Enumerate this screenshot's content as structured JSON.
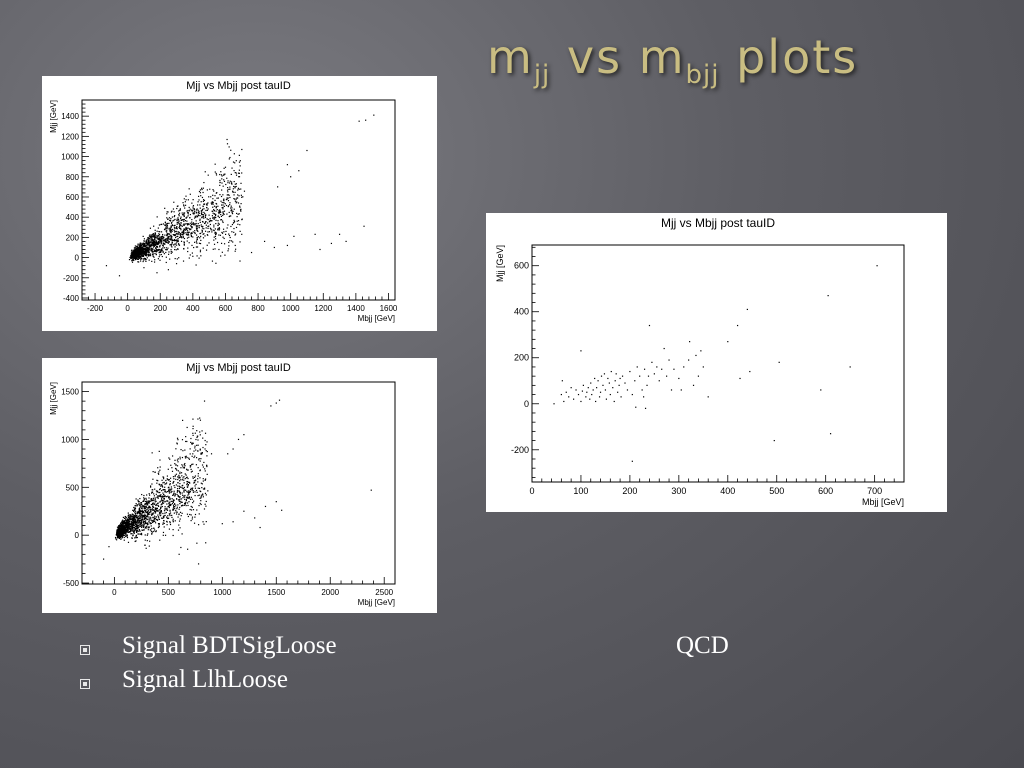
{
  "slide": {
    "title_main": "m",
    "title_sub1": "jj",
    "title_vs": " vs m",
    "title_sub2": "bjj",
    "title_tail": " plots"
  },
  "captions": {
    "bullet1": "Signal BDTSigLoose",
    "bullet2": "Signal LlhLoose",
    "qcd": "QCD"
  },
  "colors": {
    "background": "#5e5e64",
    "title": "#c9bd82",
    "caption": "#ffffff",
    "points": "#000000"
  },
  "chart_data": [
    {
      "id": "bdt",
      "type": "scatter",
      "title": "Mjj vs Mbjj post tauID",
      "xlabel": "Mbjj [GeV]",
      "ylabel": "Mjj [GeV]",
      "xlim": [
        -280,
        1640
      ],
      "ylim": [
        -420,
        1560
      ],
      "xticks": [
        -200,
        0,
        200,
        400,
        600,
        800,
        1000,
        1200,
        1400,
        1600
      ],
      "yticks": [
        -400,
        -200,
        0,
        200,
        400,
        600,
        800,
        1000,
        1200,
        1400
      ],
      "grid": false,
      "cluster": {
        "n": 1800,
        "x_range": [
          40,
          700
        ],
        "slope": 0.95,
        "spread": 0.35,
        "seed": 11
      },
      "points": [
        [
          1420,
          1350
        ],
        [
          1460,
          1360
        ],
        [
          1510,
          1410
        ],
        [
          1100,
          1060
        ],
        [
          1050,
          860
        ],
        [
          980,
          920
        ],
        [
          1000,
          800
        ],
        [
          920,
          700
        ],
        [
          1150,
          230
        ],
        [
          1250,
          140
        ],
        [
          1340,
          160
        ],
        [
          1450,
          310
        ],
        [
          900,
          100
        ],
        [
          840,
          160
        ],
        [
          980,
          120
        ],
        [
          700,
          230
        ],
        [
          620,
          150
        ],
        [
          560,
          80
        ],
        [
          300,
          -60
        ],
        [
          250,
          -120
        ],
        [
          180,
          -150
        ],
        [
          -50,
          -180
        ],
        [
          -130,
          -80
        ],
        [
          100,
          -100
        ],
        [
          760,
          50
        ],
        [
          660,
          120
        ],
        [
          1020,
          210
        ],
        [
          1180,
          80
        ],
        [
          1300,
          230
        ]
      ]
    },
    {
      "id": "llh",
      "type": "scatter",
      "title": "Mjj vs Mbjj post tauID",
      "xlabel": "Mbjj [GeV]",
      "ylabel": "Mjj [GeV]",
      "xlim": [
        -300,
        2600
      ],
      "ylim": [
        -510,
        1600
      ],
      "xticks": [
        0,
        500,
        1000,
        1500,
        2000,
        2500
      ],
      "yticks": [
        -500,
        0,
        500,
        1000,
        1500
      ],
      "grid": false,
      "cluster": {
        "n": 1900,
        "x_range": [
          40,
          850
        ],
        "slope": 0.85,
        "spread": 0.35,
        "seed": 23
      },
      "points": [
        [
          1450,
          1350
        ],
        [
          1500,
          1380
        ],
        [
          1530,
          1410
        ],
        [
          1200,
          1050
        ],
        [
          1150,
          1000
        ],
        [
          1100,
          900
        ],
        [
          1050,
          850
        ],
        [
          900,
          850
        ],
        [
          1500,
          350
        ],
        [
          1550,
          260
        ],
        [
          2380,
          470
        ],
        [
          1300,
          180
        ],
        [
          1200,
          250
        ],
        [
          1100,
          140
        ],
        [
          1000,
          120
        ],
        [
          780,
          -300
        ],
        [
          600,
          -200
        ],
        [
          -100,
          -250
        ],
        [
          -50,
          -120
        ],
        [
          350,
          860
        ],
        [
          200,
          -60
        ],
        [
          1350,
          80
        ],
        [
          1400,
          300
        ]
      ]
    },
    {
      "id": "qcd",
      "type": "scatter",
      "title": "Mjj vs Mbjj post tauID",
      "xlabel": "Mbjj [GeV]",
      "ylabel": "Mjj [GeV]",
      "xlim": [
        0,
        760
      ],
      "ylim": [
        -340,
        690
      ],
      "xticks": [
        0,
        100,
        200,
        300,
        400,
        500,
        600,
        700
      ],
      "yticks": [
        -200,
        0,
        200,
        400,
        600
      ],
      "grid": false,
      "points": [
        [
          45,
          0
        ],
        [
          60,
          40
        ],
        [
          62,
          100
        ],
        [
          65,
          10
        ],
        [
          70,
          50
        ],
        [
          75,
          30
        ],
        [
          80,
          70
        ],
        [
          85,
          20
        ],
        [
          90,
          60
        ],
        [
          95,
          40
        ],
        [
          100,
          10
        ],
        [
          100,
          230
        ],
        [
          103,
          55
        ],
        [
          105,
          80
        ],
        [
          110,
          30
        ],
        [
          112,
          50
        ],
        [
          115,
          70
        ],
        [
          118,
          20
        ],
        [
          120,
          90
        ],
        [
          122,
          40
        ],
        [
          125,
          60
        ],
        [
          128,
          110
        ],
        [
          130,
          10
        ],
        [
          132,
          70
        ],
        [
          135,
          100
        ],
        [
          138,
          30
        ],
        [
          140,
          50
        ],
        [
          142,
          120
        ],
        [
          145,
          80
        ],
        [
          148,
          130
        ],
        [
          150,
          60
        ],
        [
          152,
          20
        ],
        [
          155,
          110
        ],
        [
          158,
          90
        ],
        [
          160,
          40
        ],
        [
          162,
          140
        ],
        [
          165,
          70
        ],
        [
          168,
          10
        ],
        [
          170,
          100
        ],
        [
          172,
          130
        ],
        [
          175,
          50
        ],
        [
          178,
          80
        ],
        [
          180,
          110
        ],
        [
          182,
          30
        ],
        [
          185,
          120
        ],
        [
          190,
          90
        ],
        [
          195,
          60
        ],
        [
          200,
          140
        ],
        [
          205,
          40
        ],
        [
          210,
          100
        ],
        [
          212,
          -15
        ],
        [
          215,
          160
        ],
        [
          220,
          120
        ],
        [
          225,
          60
        ],
        [
          228,
          30
        ],
        [
          230,
          150
        ],
        [
          232,
          -20
        ],
        [
          235,
          80
        ],
        [
          238,
          120
        ],
        [
          240,
          340
        ],
        [
          245,
          180
        ],
        [
          250,
          130
        ],
        [
          255,
          160
        ],
        [
          260,
          100
        ],
        [
          265,
          150
        ],
        [
          270,
          240
        ],
        [
          275,
          120
        ],
        [
          280,
          190
        ],
        [
          285,
          60
        ],
        [
          290,
          150
        ],
        [
          300,
          110
        ],
        [
          305,
          60
        ],
        [
          310,
          160
        ],
        [
          320,
          190
        ],
        [
          322,
          270
        ],
        [
          330,
          80
        ],
        [
          335,
          210
        ],
        [
          340,
          120
        ],
        [
          345,
          230
        ],
        [
          350,
          160
        ],
        [
          360,
          30
        ],
        [
          400,
          270
        ],
        [
          420,
          340
        ],
        [
          425,
          110
        ],
        [
          440,
          410
        ],
        [
          445,
          140
        ],
        [
          205,
          -250
        ],
        [
          495,
          -160
        ],
        [
          505,
          180
        ],
        [
          590,
          60
        ],
        [
          605,
          470
        ],
        [
          610,
          -130
        ],
        [
          650,
          160
        ],
        [
          705,
          600
        ]
      ]
    }
  ]
}
